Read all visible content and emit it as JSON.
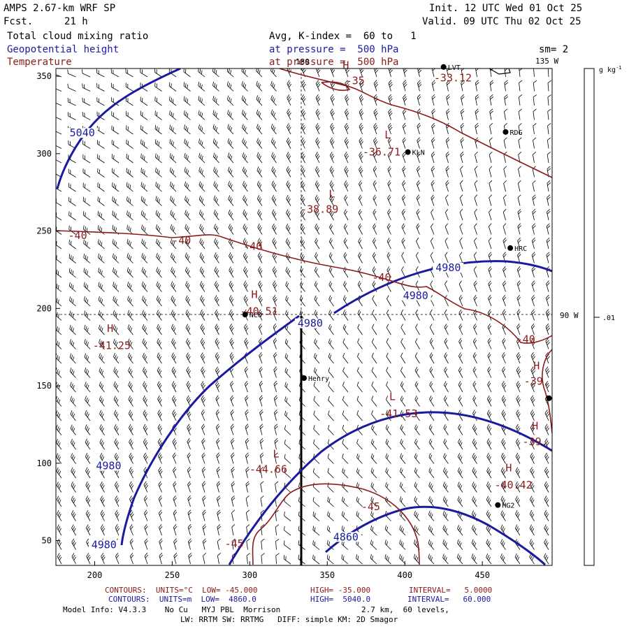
{
  "header": {
    "model": "AMPS 2.67-km WRF SP",
    "fcst_label": "Fcst.",
    "fcst_value": "21 h",
    "init": "Init. 12 UTC Wed 01 Oct 25",
    "valid": "Valid. 09 UTC Thu 02 Oct 25",
    "field1": "Total cloud mixing ratio",
    "field2": "Geopotential height",
    "field3": "Temperature",
    "avg": "Avg, K-index =  60 to   1",
    "pres1": "at pressure =  500 hPa",
    "pres2": "at pressure =  500 hPa",
    "sm": "sm= 2"
  },
  "axes": {
    "x_ticks": [
      200,
      250,
      300,
      350,
      400,
      450
    ],
    "x_range": [
      175,
      495
    ],
    "y_ticks": [
      50,
      100,
      150,
      200,
      250,
      300,
      350
    ],
    "y_range": [
      34,
      355
    ]
  },
  "geo_labels": {
    "lon180": "180",
    "lon135": "135 W",
    "lon90": "90 W"
  },
  "colorbar": {
    "unit_label": "g kg",
    "unit_sup": "-1",
    "tick_label": ".01"
  },
  "stations": [
    {
      "name": "LVT",
      "x": 425,
      "y": 356
    },
    {
      "name": "RDG",
      "x": 465,
      "y": 314
    },
    {
      "name": "KLN",
      "x": 402,
      "y": 301
    },
    {
      "name": "HRC",
      "x": 468,
      "y": 239
    },
    {
      "name": "NCO",
      "x": 297,
      "y": 196
    },
    {
      "name": "Henry",
      "x": 335,
      "y": 155
    },
    {
      "name": "HG2",
      "x": 460,
      "y": 73
    },
    {
      "name": "",
      "x": 493,
      "y": 142
    }
  ],
  "height_labels": [
    {
      "text": "5040",
      "x": 192,
      "y": 312
    },
    {
      "text": "4980",
      "x": 428,
      "y": 225
    },
    {
      "text": "4980",
      "x": 407,
      "y": 207
    },
    {
      "text": "4980",
      "x": 339,
      "y": 189
    },
    {
      "text": "4980",
      "x": 209,
      "y": 97
    },
    {
      "text": "4980",
      "x": 206,
      "y": 46
    },
    {
      "text": "4860",
      "x": 362,
      "y": 51
    }
  ],
  "temp_labels": [
    {
      "text": "-35",
      "x": 368,
      "y": 347
    },
    {
      "text": "H",
      "x": 362,
      "y": 357
    },
    {
      "text": "-33.12",
      "x": 431,
      "y": 349
    },
    {
      "text": "L",
      "x": 389,
      "y": 312
    },
    {
      "text": "-36.71",
      "x": 385,
      "y": 301
    },
    {
      "text": "L",
      "x": 353,
      "y": 274
    },
    {
      "text": "-38.89",
      "x": 345,
      "y": 264
    },
    {
      "text": "-40",
      "x": 189,
      "y": 247
    },
    {
      "text": "-40",
      "x": 256,
      "y": 244
    },
    {
      "text": "-40",
      "x": 302,
      "y": 240
    },
    {
      "text": "-40",
      "x": 385,
      "y": 220
    },
    {
      "text": "H",
      "x": 303,
      "y": 209
    },
    {
      "text": "-40.51",
      "x": 306,
      "y": 198
    },
    {
      "text": "H",
      "x": 210,
      "y": 187
    },
    {
      "text": "-41.25",
      "x": 211,
      "y": 176
    },
    {
      "text": "-40",
      "x": 478,
      "y": 180
    },
    {
      "text": "H",
      "x": 485,
      "y": 163
    },
    {
      "text": "-39.",
      "x": 485,
      "y": 153
    },
    {
      "text": "L",
      "x": 392,
      "y": 143
    },
    {
      "text": "-41.53",
      "x": 396,
      "y": 132
    },
    {
      "text": "H",
      "x": 484,
      "y": 124
    },
    {
      "text": "-39.",
      "x": 484,
      "y": 114
    },
    {
      "text": "L",
      "x": 317,
      "y": 106
    },
    {
      "text": "-44.66",
      "x": 312,
      "y": 96
    },
    {
      "text": "H",
      "x": 467,
      "y": 97
    },
    {
      "text": "-40.42",
      "x": 470,
      "y": 86
    },
    {
      "text": "-45",
      "x": 378,
      "y": 72
    },
    {
      "text": "-45",
      "x": 290,
      "y": 48
    }
  ],
  "footer": {
    "t_prefix": "CONTOURS:  UNITS=°C  LOW= -45.000",
    "t_high": "HIGH= -35.000",
    "t_interval": "INTERVAL=   5.0000",
    "h_prefix": "CONTOURS:  UNITS=m  LOW=  4860.0",
    "h_high": "HIGH=  5040.0",
    "h_interval": "INTERVAL=   60.000",
    "model_info": "Model Info: V4.3.3    No Cu   MYJ PBL  Morrison",
    "resolution": "2.7 km,  60 levels,",
    "physics": "LW: RRTM SW: RRTMG   DIFF: simple KM: 2D Smagor"
  },
  "colors": {
    "temperature": "#8b1a1a",
    "height": "#1a1aa0",
    "barb": "#000000"
  }
}
